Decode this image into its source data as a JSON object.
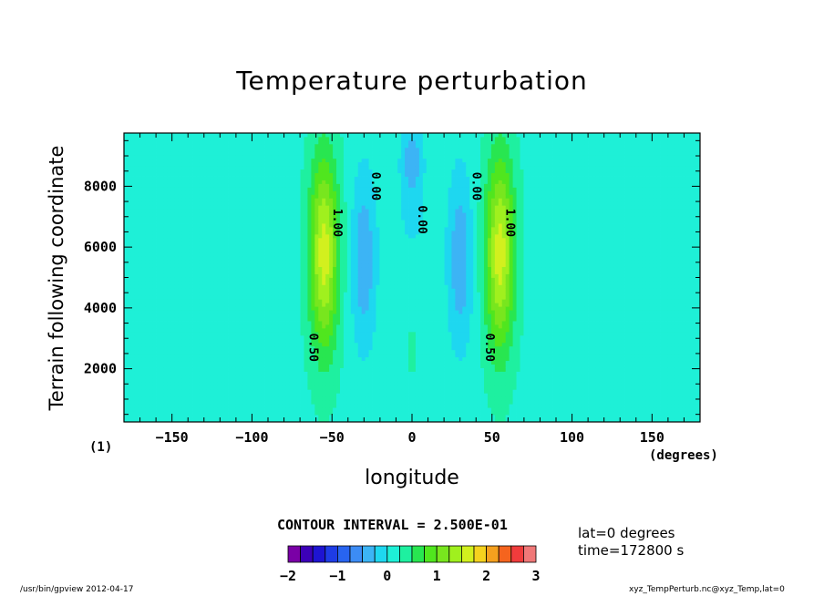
{
  "chart_data": {
    "type": "heatmap",
    "title": "Temperature perturbation",
    "xlabel": "longitude",
    "ylabel": "Terrain following coordinate",
    "x_unit": "(degrees)",
    "panel_id": "(1)",
    "xlim": [
      -180,
      180
    ],
    "ylim": [
      250,
      9750
    ],
    "x_ticks": [
      -150,
      -100,
      -50,
      0,
      50,
      100,
      150
    ],
    "y_ticks": [
      2000,
      4000,
      6000,
      8000
    ],
    "grid": false,
    "contour_interval_label": "CONTOUR INTERVAL = 2.500E-01",
    "colorbar": {
      "levels": [
        -2,
        -1.75,
        -1.5,
        -1.25,
        -1,
        -0.75,
        -0.5,
        -0.25,
        0,
        0.25,
        0.5,
        0.75,
        1,
        1.25,
        1.5,
        1.75,
        2,
        2.25,
        2.5,
        2.75,
        3
      ],
      "colors": [
        "#7a00a6",
        "#3c00b8",
        "#1e14d2",
        "#1e3ce6",
        "#2864f0",
        "#3c8cf5",
        "#3cb4f5",
        "#1ed7f0",
        "#1ef0d7",
        "#1ef0a0",
        "#28e650",
        "#50e61e",
        "#78e61e",
        "#a0f01e",
        "#d2f01e",
        "#f5d21e",
        "#f5a01e",
        "#f5641e",
        "#f03c3c",
        "#f07878"
      ],
      "tick_labels": [
        "−2",
        "−1",
        "0",
        "1",
        "2",
        "3"
      ]
    },
    "contour_labels": [
      {
        "text": "0.00",
        "x": -25,
        "y": 8000
      },
      {
        "text": "0.00",
        "x": 38,
        "y": 8000
      },
      {
        "text": "0.00",
        "x": 4,
        "y": 6900
      },
      {
        "text": "1.00",
        "x": -49,
        "y": 6800
      },
      {
        "text": "1.00",
        "x": 59,
        "y": 6800
      },
      {
        "text": "0.50",
        "x": -64,
        "y": 2700
      },
      {
        "text": "0.50",
        "x": 46,
        "y": 2700
      }
    ],
    "field_features": [
      {
        "kind": "positive_max",
        "x": -55,
        "y": 5800,
        "value": 1.6
      },
      {
        "kind": "positive_max",
        "x": 55,
        "y": 5800,
        "value": 1.6
      },
      {
        "kind": "negative_min",
        "x": -30,
        "y": 5800,
        "value": -0.45
      },
      {
        "kind": "negative_min",
        "x": 30,
        "y": 5800,
        "value": -0.45
      },
      {
        "kind": "negative_min",
        "x": 0,
        "y": 8800,
        "value": -0.4
      },
      {
        "kind": "positive_max",
        "x": 0,
        "y": 2600,
        "value": 0.15
      }
    ]
  },
  "annotations": {
    "lat": "lat=0  degrees",
    "time": "time=172800  s"
  },
  "footer": {
    "left": "/usr/bin/gpview  2012-04-17",
    "right": "xyz_TempPerturb.nc@xyz_Temp,lat=0"
  }
}
